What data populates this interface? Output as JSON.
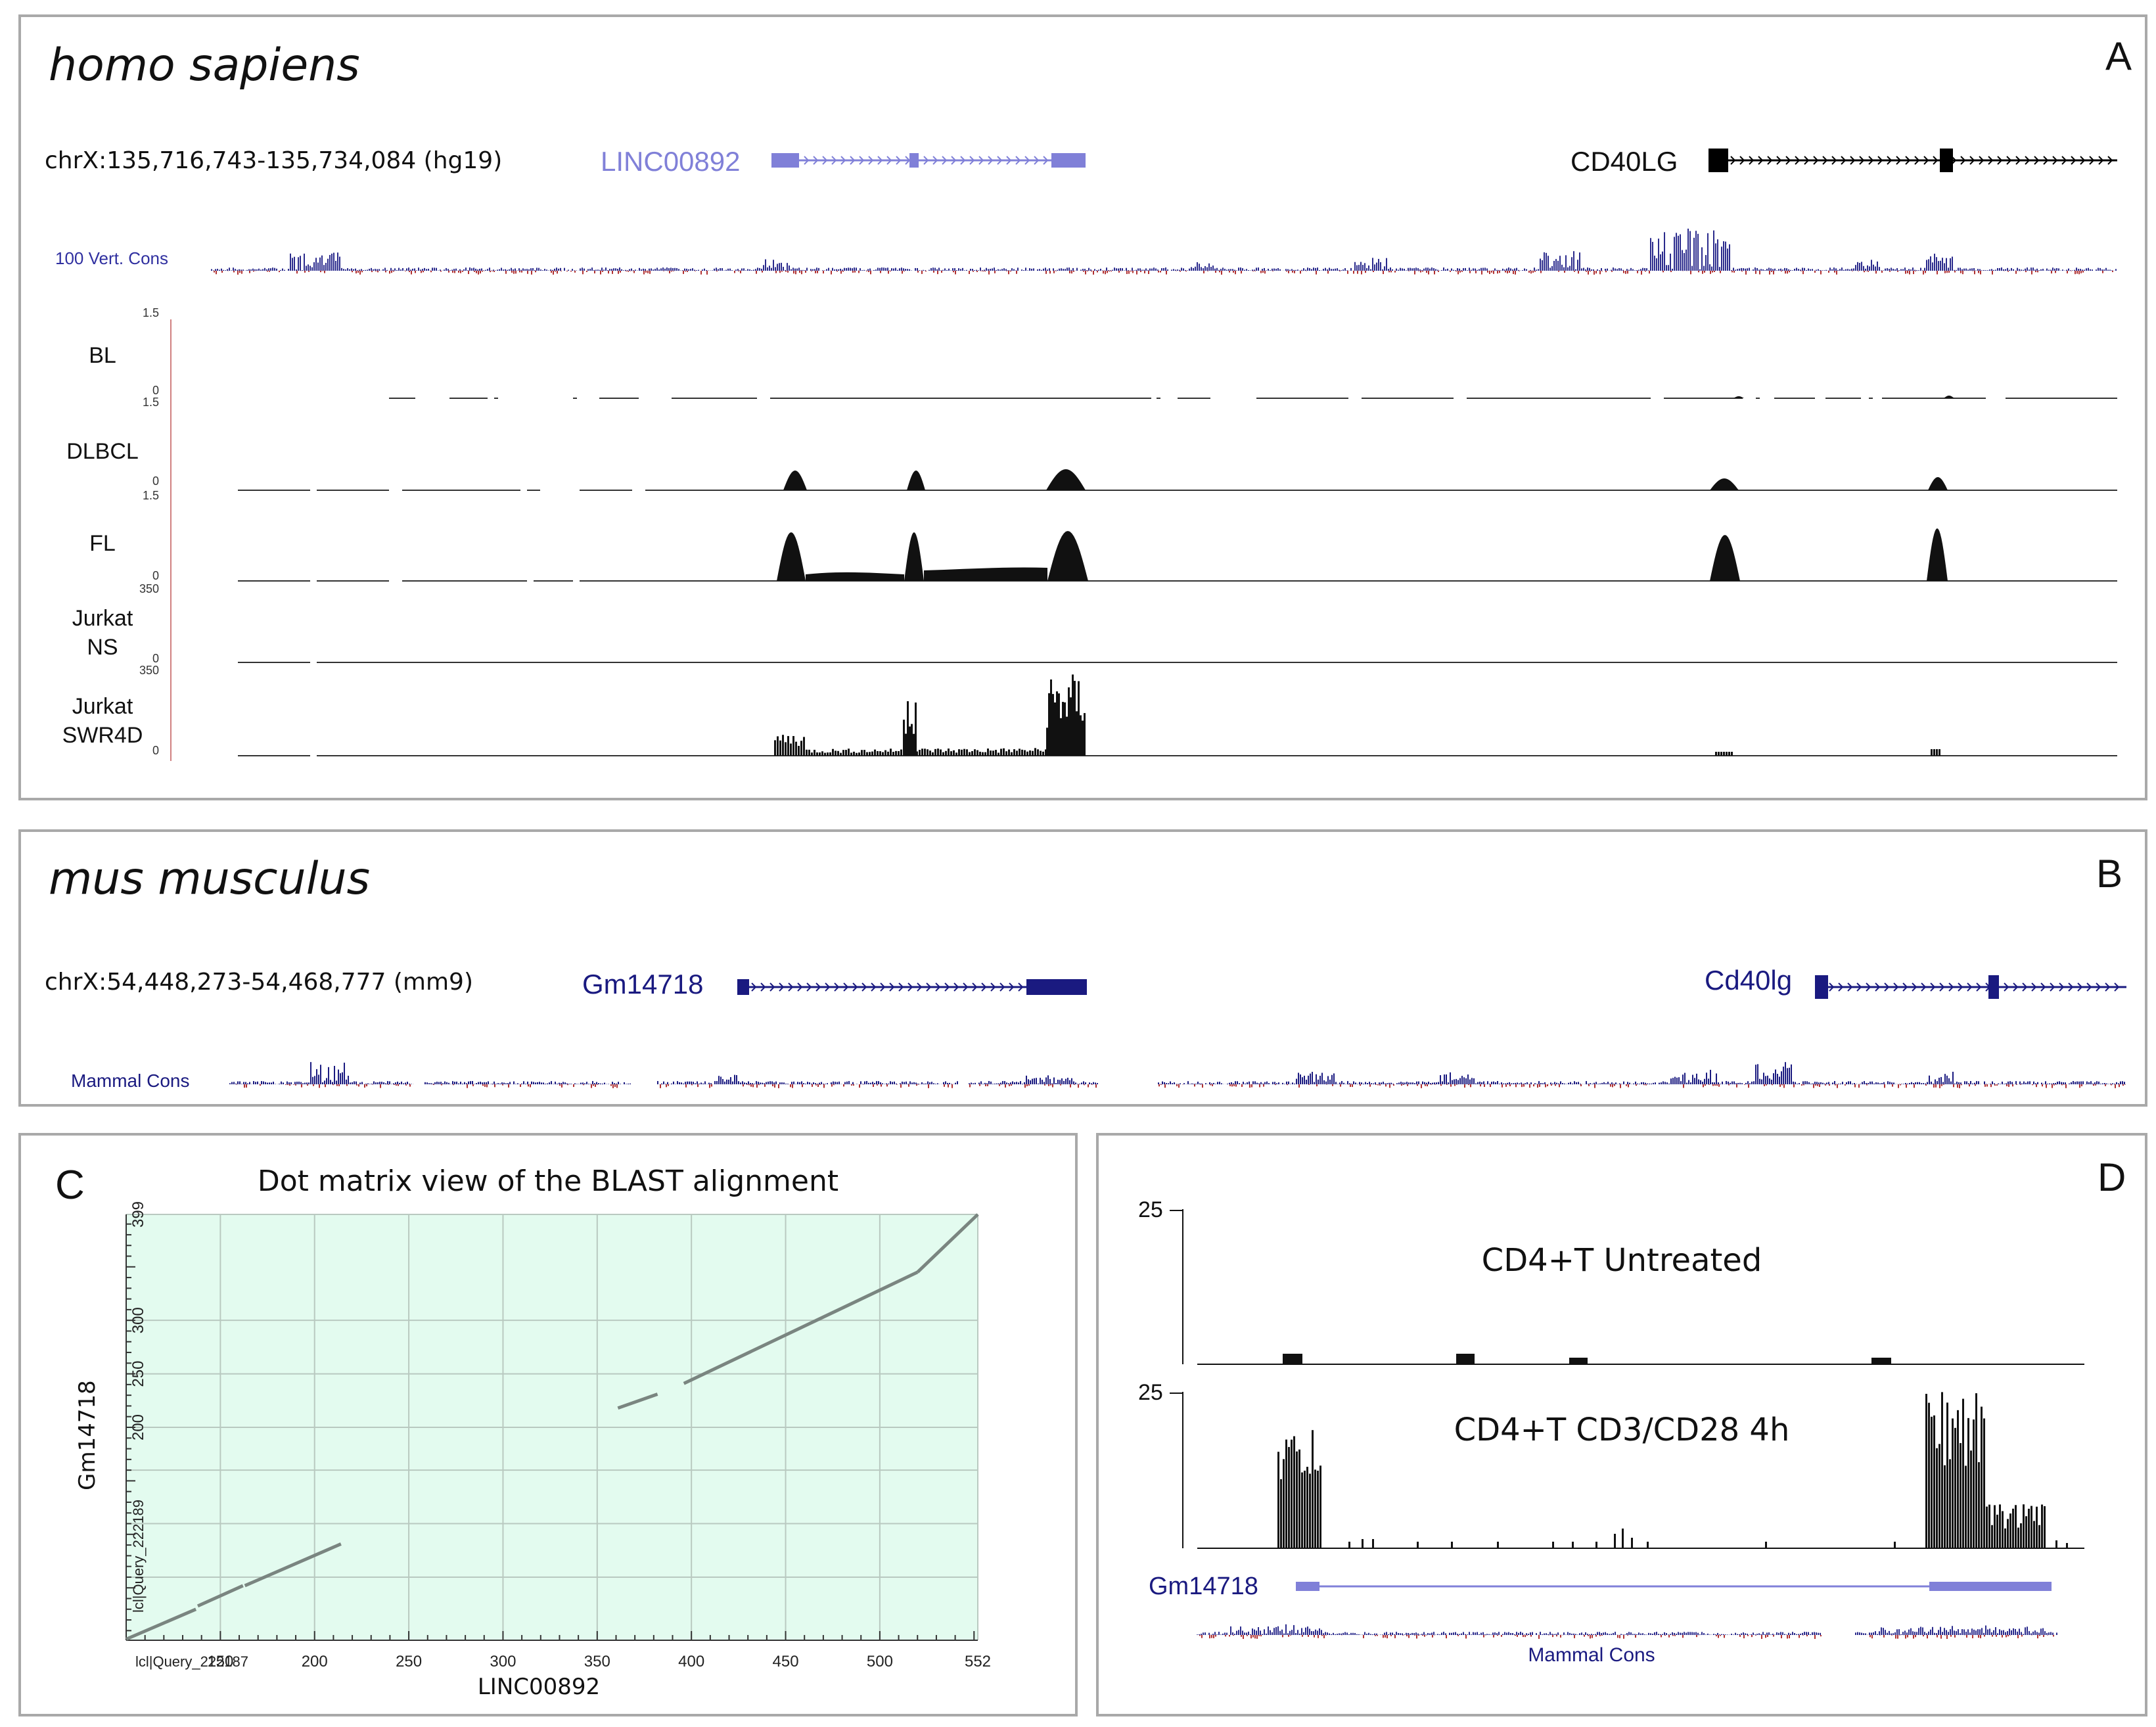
{
  "panelA": {
    "letter": "A",
    "species": "homo sapiens",
    "coords": "chrX:135,716,743-135,734,084 (hg19)",
    "gene1": "LINC00892",
    "gene2": "CD40LG",
    "cons_label": "100 Vert. Cons",
    "tracks": [
      {
        "name_lines": [
          "BL"
        ],
        "scale_top": "1.5",
        "scale_bottom": "0"
      },
      {
        "name_lines": [
          "DLBCL"
        ],
        "scale_top": "1.5",
        "scale_bottom": "0"
      },
      {
        "name_lines": [
          "FL"
        ],
        "scale_top": "1.5",
        "scale_bottom": "0"
      },
      {
        "name_lines": [
          "Jurkat",
          "NS"
        ],
        "scale_top": "350",
        "scale_bottom": "0"
      },
      {
        "name_lines": [
          "Jurkat",
          "SWR4D"
        ],
        "scale_top": "350",
        "scale_bottom": "0"
      }
    ]
  },
  "panelB": {
    "letter": "B",
    "species": "mus musculus",
    "coords": "chrX:54,448,273-54,468,777 (mm9)",
    "gene1": "Gm14718",
    "gene2": "Cd40lg",
    "cons_label": "Mammal Cons"
  },
  "panelC": {
    "letter": "C",
    "title": "Dot matrix view of the BLAST alignment",
    "xlabel": "LINC00892",
    "ylabel": "Gm14718",
    "x_ticks": [
      "lcl|Query_222187",
      "150",
      "200",
      "250",
      "300",
      "350",
      "400",
      "450",
      "500",
      "552"
    ],
    "y_ticks": [
      "lcl|Query_222189",
      "200",
      "250",
      "300",
      "399"
    ]
  },
  "panelD": {
    "letter": "D",
    "track1": {
      "label": "CD4+T Untreated",
      "scale": "25"
    },
    "track2": {
      "label": "CD4+T CD3/CD28 4h",
      "scale": "25"
    },
    "gene": "Gm14718",
    "cons_label": "Mammal Cons"
  },
  "chart_data": [
    {
      "type": "scatter",
      "title": "Dot matrix view of the BLAST alignment",
      "xlabel": "LINC00892",
      "ylabel": "Gm14718",
      "xlim": [
        100,
        552
      ],
      "ylim": [
        1,
        399
      ],
      "series": [
        {
          "segments": [
            [
              100,
              2
            ],
            [
              137,
              30
            ]
          ]
        },
        {
          "segments": [
            [
              138,
              33
            ],
            [
              162,
              52
            ]
          ]
        },
        {
          "segments": [
            [
              163,
              52
            ],
            [
              214,
              91
            ]
          ]
        },
        {
          "segments": [
            [
              361,
              218
            ],
            [
              382,
              231
            ]
          ]
        },
        {
          "segments": [
            [
              396,
              241
            ],
            [
              520,
              345
            ]
          ]
        },
        {
          "segments": [
            [
              520,
              345
            ],
            [
              552,
              399
            ]
          ]
        }
      ]
    }
  ],
  "colors": {
    "gene_light": "#8080d8",
    "gene_dark": "#1a1a80",
    "cons_pos": "#2a2a8c",
    "cons_neg": "#b03030",
    "grid_bg": "#e3fbef"
  }
}
